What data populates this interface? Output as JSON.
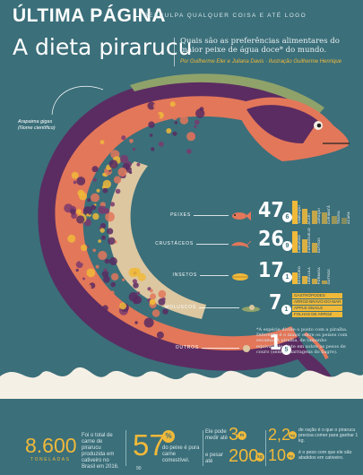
{
  "header": {
    "section": "ÚLTIMA PÁGINA",
    "tagline": "DESCULPA QUALQUER COISA E ATÉ LOGO"
  },
  "article": {
    "title": "A dieta pirarucu",
    "intro": "Quais são as preferências alimentares do maior peixe de água doce* do mundo.",
    "credits": "Por Guilherme Eler e Juliana Davis · Ilustração Guilherme Henrique"
  },
  "species_label": [
    "Arapaima gigas",
    "(Nome científico)"
  ],
  "diet": [
    {
      "label": "PEIXES",
      "value": "47",
      "decimal": "6",
      "icon": "fish-icon",
      "bars": [
        {
          "name": "TAMBAQUI",
          "v": 14
        },
        {
          "name": "ACARI",
          "v": 9
        },
        {
          "name": "JARAQUI",
          "v": 8
        },
        {
          "name": "CURIMATÃ",
          "v": 7
        },
        {
          "name": "TRAÍRA",
          "v": 5
        },
        {
          "name": "ACARÁ",
          "v": 4
        }
      ]
    },
    {
      "label": "CRUSTÁCEOS",
      "value": "26",
      "decimal": "9",
      "icon": "shrimp-icon",
      "bars": [
        {
          "name": "CAMARÃO",
          "v": 13
        },
        {
          "name": "CARANGUEJO",
          "v": 8
        },
        {
          "name": "OUTROS",
          "v": 6
        }
      ]
    },
    {
      "label": "INSETOS",
      "value": "17",
      "decimal": "1",
      "icon": "insect-icon",
      "bars": [
        {
          "name": "BESOURO",
          "v": 7
        },
        {
          "name": "LIBÉLULA",
          "v": 5
        },
        {
          "name": "FORMIGA",
          "v": 3
        },
        {
          "name": "OUTROS",
          "v": 2
        }
      ]
    },
    {
      "label": "MOLUSCOS",
      "value": "7",
      "decimal": "1",
      "icon": "snail-icon",
      "notes": [
        "GASTRÓPODES",
        "ARROZ-BRAVO-DO-MAR",
        "APPLE-SNAILS",
        "FOLHAS DE ARROZ"
      ]
    },
    {
      "label": "OUTROS",
      "value": "1",
      "decimal": "5",
      "icon": "other-icon"
    }
  ],
  "footnote": "*A espécie divide o posto com a piraíba. Diferente é o maior entre os peixes com escama. A piraíba, de tamanho equivalente, bate em sobre os pesos de couro (sem as barragens do bagre).",
  "stats": [
    {
      "big": "8.600",
      "unit": "TONELADAS",
      "text": "Foi o total de carne de pirarucu produzida em cativeiro no Brasil em 2016."
    },
    {
      "big": "57",
      "badge": "%",
      "text": "do peixe é pura carne comestível."
    },
    {
      "pre1": "Ele pode medir até",
      "big1": "3",
      "unit1": "m",
      "pre2": "e pesar até",
      "big2": "200",
      "unit2": "kg"
    },
    {
      "big1": "2,2",
      "unit1": "kg",
      "text1": "de ração é o que o pirarucu precisa comer para ganhar 1 kg.",
      "big2": "10",
      "unit2": "kg",
      "text2": "é o peso com que ele são abatidos em cativeiro."
    }
  ],
  "page_number": "90",
  "colors": {
    "background": "#3b6f7a",
    "accent": "#f0b93a",
    "purple": "#5b2c61",
    "salmon": "#e3775a",
    "cream": "#dcc7a1",
    "olive": "#8fa26a"
  }
}
